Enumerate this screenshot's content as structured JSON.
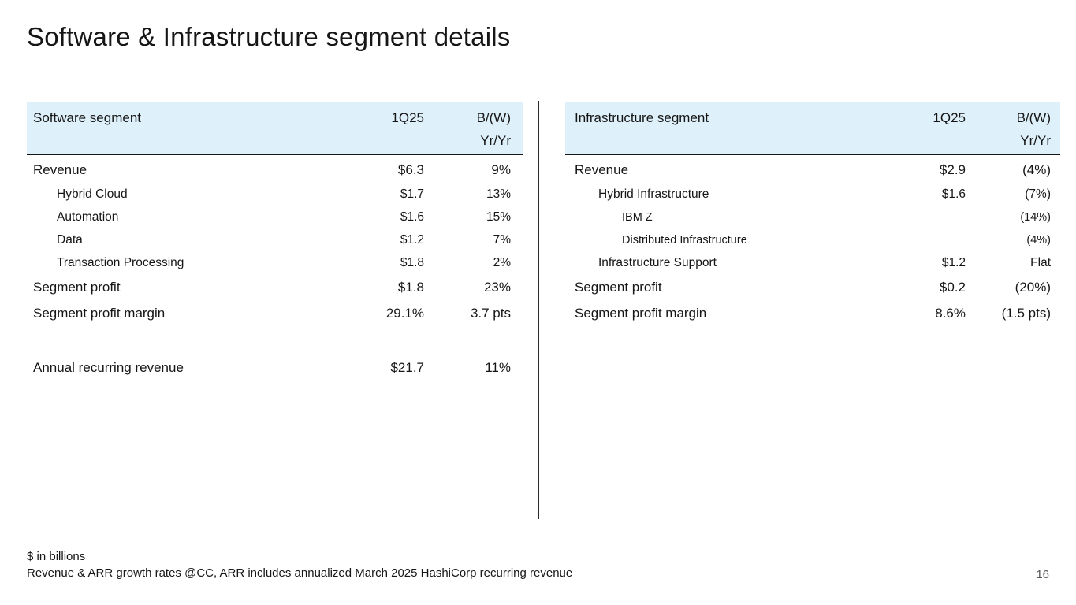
{
  "slide": {
    "title": "Software & Infrastructure segment details",
    "page_number": "16",
    "footnotes": [
      "$ in billions",
      "Revenue & ARR growth rates @CC, ARR includes annualized March 2025 HashiCorp recurring revenue"
    ]
  },
  "colors": {
    "header_band": "#def0fa",
    "text": "#161616",
    "rule": "#161616",
    "page_number": "#565656"
  },
  "chart_data": [
    {
      "type": "table",
      "title": "Software segment",
      "columns": [
        "Software segment",
        "1Q25",
        "B/(W) Yr/Yr"
      ],
      "rows": [
        [
          "Revenue",
          "$6.3",
          "9%"
        ],
        [
          "Hybrid Cloud",
          "$1.7",
          "13%"
        ],
        [
          "Automation",
          "$1.6",
          "15%"
        ],
        [
          "Data",
          "$1.2",
          "7%"
        ],
        [
          "Transaction Processing",
          "$1.8",
          "2%"
        ],
        [
          "Segment profit",
          "$1.8",
          "23%"
        ],
        [
          "Segment profit margin",
          "29.1%",
          "3.7 pts"
        ],
        [
          "Annual recurring revenue",
          "$21.7",
          "11%"
        ]
      ]
    },
    {
      "type": "table",
      "title": "Infrastructure segment",
      "columns": [
        "Infrastructure segment",
        "1Q25",
        "B/(W) Yr/Yr"
      ],
      "rows": [
        [
          "Revenue",
          "$2.9",
          "(4%)"
        ],
        [
          "Hybrid Infrastructure",
          "$1.6",
          "(7%)"
        ],
        [
          "IBM Z",
          "",
          "(14%)"
        ],
        [
          "Distributed Infrastructure",
          "",
          "(4%)"
        ],
        [
          "Infrastructure Support",
          "$1.2",
          "Flat"
        ],
        [
          "Segment profit",
          "$0.2",
          "(20%)"
        ],
        [
          "Segment profit margin",
          "8.6%",
          "(1.5 pts)"
        ]
      ]
    }
  ],
  "tables": [
    {
      "header": {
        "label": "Software segment",
        "col1": "1Q25",
        "col2_line1": "B/(W)",
        "col2_line2": "Yr/Yr"
      },
      "rows": [
        {
          "label": "Revenue",
          "value": "$6.3",
          "yoy": "9%",
          "indent": 0,
          "main": true
        },
        {
          "label": "Hybrid Cloud",
          "value": "$1.7",
          "yoy": "13%",
          "indent": 1
        },
        {
          "label": "Automation",
          "value": "$1.6",
          "yoy": "15%",
          "indent": 1
        },
        {
          "label": "Data",
          "value": "$1.2",
          "yoy": "7%",
          "indent": 1
        },
        {
          "label": "Transaction Processing",
          "value": "$1.8",
          "yoy": "2%",
          "indent": 1
        },
        {
          "label": "Segment profit",
          "value": "$1.8",
          "yoy": "23%",
          "indent": 0,
          "main": true
        },
        {
          "label": "Segment profit margin",
          "value": "29.1%",
          "yoy": "3.7 pts",
          "indent": 0,
          "main": true
        },
        {
          "spacer": true
        },
        {
          "label": "Annual recurring revenue",
          "value": "$21.7",
          "yoy": "11%",
          "indent": 0,
          "main": true
        }
      ]
    },
    {
      "header": {
        "label": "Infrastructure segment",
        "col1": "1Q25",
        "col2_line1": "B/(W)",
        "col2_line2": "Yr/Yr"
      },
      "rows": [
        {
          "label": "Revenue",
          "value": "$2.9",
          "yoy": "(4%)",
          "indent": 0,
          "main": true
        },
        {
          "label": "Hybrid Infrastructure",
          "value": "$1.6",
          "yoy": "(7%)",
          "indent": 1
        },
        {
          "label": "IBM Z",
          "value": "",
          "yoy": "(14%)",
          "indent": 2
        },
        {
          "label": "Distributed Infrastructure",
          "value": "",
          "yoy": "(4%)",
          "indent": 2
        },
        {
          "label": "Infrastructure Support",
          "value": "$1.2",
          "yoy": "Flat",
          "indent": 1
        },
        {
          "label": "Segment profit",
          "value": "$0.2",
          "yoy": "(20%)",
          "indent": 0,
          "main": true
        },
        {
          "label": "Segment profit margin",
          "value": "8.6%",
          "yoy": "(1.5 pts)",
          "indent": 0,
          "main": true
        }
      ]
    }
  ]
}
